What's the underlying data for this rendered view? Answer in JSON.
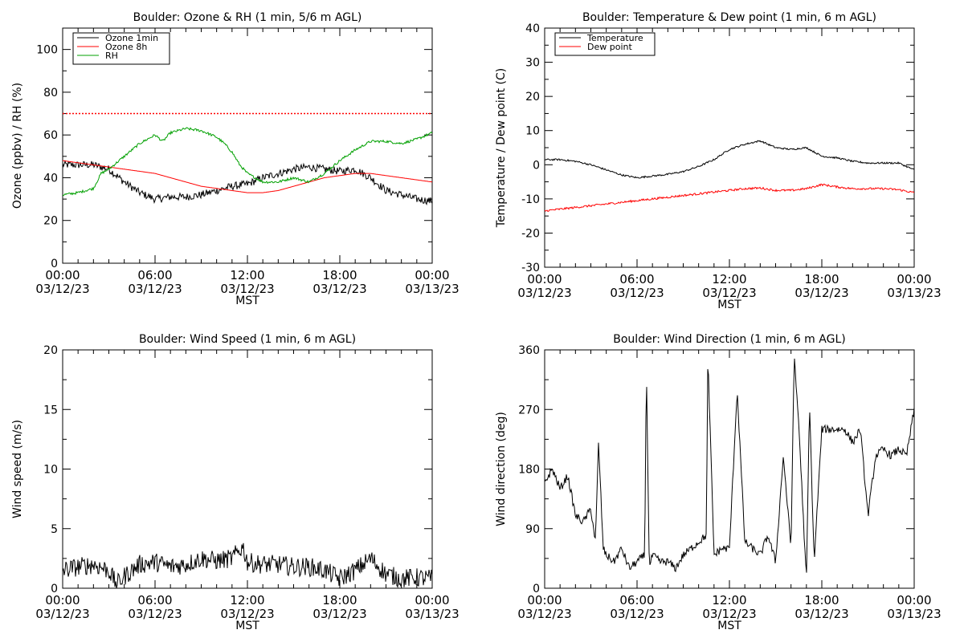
{
  "chart_data": [
    {
      "type": "line",
      "title": "Boulder: Ozone & RH (1 min, 5/6 m AGL)",
      "xlabel": "MST",
      "ylabel": "Ozone (ppbv) / RH (%)",
      "ylim": [
        0,
        110
      ],
      "yticks": [
        0,
        20,
        40,
        60,
        80,
        100
      ],
      "xticks": [
        {
          "top": "00:00",
          "bottom": "03/12/23"
        },
        {
          "top": "06:00",
          "bottom": "03/12/23"
        },
        {
          "top": "12:00",
          "bottom": "03/12/23"
        },
        {
          "top": "18:00",
          "bottom": "03/12/23"
        },
        {
          "top": "00:00",
          "bottom": "03/13/23"
        }
      ],
      "xlim_hours": [
        0,
        24
      ],
      "legend": "top-left",
      "reference_line": {
        "y": 70,
        "color": "#ff0000",
        "style": "dotted"
      },
      "series": [
        {
          "name": "Ozone 1min",
          "color": "#000000",
          "noise": 1.8,
          "x": [
            0,
            1,
            2,
            3,
            4,
            5,
            6,
            7,
            8,
            9,
            10,
            11,
            12,
            13,
            14,
            15,
            16,
            17,
            18,
            19,
            20,
            21,
            22,
            23,
            24
          ],
          "y": [
            46,
            46,
            46,
            44,
            38,
            33,
            30,
            31,
            31,
            32,
            34,
            36,
            37,
            40,
            42,
            44,
            45,
            44,
            43,
            44,
            40,
            34,
            32,
            30,
            29
          ]
        },
        {
          "name": "Ozone 8h",
          "color": "#ff0000",
          "noise": 0,
          "x": [
            0,
            1,
            2,
            3,
            4,
            5,
            6,
            7,
            8,
            9,
            10,
            11,
            12,
            13,
            14,
            15,
            16,
            17,
            18,
            19,
            20,
            21,
            22,
            23,
            24
          ],
          "y": [
            48,
            47,
            46,
            45,
            44,
            43,
            42,
            40,
            38,
            36,
            35,
            34,
            33,
            33,
            34,
            36,
            38,
            40,
            41,
            42,
            42,
            41,
            40,
            39,
            38
          ]
        },
        {
          "name": "RH",
          "color": "#00a000",
          "noise": 0.6,
          "x": [
            0,
            1,
            2,
            2.5,
            3,
            4,
            5,
            6,
            6.5,
            7,
            8,
            9,
            10,
            10.5,
            11,
            11.5,
            12,
            13,
            14,
            15,
            16,
            17,
            17.5,
            18,
            19,
            20,
            21,
            22,
            23,
            24
          ],
          "y": [
            32,
            33,
            35,
            42,
            44,
            50,
            56,
            60,
            57,
            61,
            63,
            62,
            59,
            56,
            52,
            46,
            42,
            38,
            38,
            40,
            38,
            42,
            45,
            48,
            53,
            57,
            57,
            56,
            58,
            61
          ]
        }
      ]
    },
    {
      "type": "line",
      "title": "Boulder: Temperature & Dew point (1 min, 6 m AGL)",
      "xlabel": "MST",
      "ylabel": "Temperature / Dew point (C)",
      "ylim": [
        -30,
        40
      ],
      "yticks": [
        -30,
        -20,
        -10,
        0,
        10,
        20,
        30,
        40
      ],
      "xticks": [
        {
          "top": "00:00",
          "bottom": "03/12/23"
        },
        {
          "top": "06:00",
          "bottom": "03/12/23"
        },
        {
          "top": "12:00",
          "bottom": "03/12/23"
        },
        {
          "top": "18:00",
          "bottom": "03/12/23"
        },
        {
          "top": "00:00",
          "bottom": "03/13/23"
        }
      ],
      "xlim_hours": [
        0,
        24
      ],
      "legend": "top-left",
      "series": [
        {
          "name": "Temperature",
          "color": "#000000",
          "noise": 0.25,
          "x": [
            0,
            1,
            2,
            3,
            4,
            5,
            6,
            7,
            8,
            9,
            10,
            11,
            12,
            13,
            14,
            15,
            16,
            17,
            18,
            19,
            20,
            21,
            22,
            23,
            24
          ],
          "y": [
            1.5,
            1.5,
            1,
            0,
            -1.5,
            -3,
            -3.8,
            -3.3,
            -2.8,
            -2,
            -0.5,
            1.5,
            4.5,
            6,
            7,
            5,
            4.5,
            5,
            2.5,
            2,
            1,
            0.5,
            0.5,
            0.5,
            -1.5
          ]
        },
        {
          "name": "Dew point",
          "color": "#ff0000",
          "noise": 0.3,
          "x": [
            0,
            1,
            2,
            3,
            4,
            5,
            6,
            7,
            8,
            9,
            10,
            11,
            12,
            13,
            14,
            15,
            16,
            17,
            18,
            19,
            20,
            21,
            22,
            23,
            24
          ],
          "y": [
            -13.5,
            -13,
            -12.5,
            -12,
            -11.5,
            -11,
            -10.5,
            -10,
            -9.5,
            -9,
            -8.5,
            -8,
            -7.5,
            -7,
            -6.8,
            -7.5,
            -7.5,
            -7,
            -5.8,
            -6.5,
            -7,
            -7,
            -7,
            -7.3,
            -8.2
          ]
        }
      ]
    },
    {
      "type": "line",
      "title": "Boulder: Wind Speed (1 min, 6 m AGL)",
      "xlabel": "MST",
      "ylabel": "Wind speed (m/s)",
      "ylim": [
        0,
        20
      ],
      "yticks": [
        0,
        5,
        10,
        15,
        20
      ],
      "xticks": [
        {
          "top": "00:00",
          "bottom": "03/12/23"
        },
        {
          "top": "06:00",
          "bottom": "03/12/23"
        },
        {
          "top": "12:00",
          "bottom": "03/12/23"
        },
        {
          "top": "18:00",
          "bottom": "03/12/23"
        },
        {
          "top": "00:00",
          "bottom": "03/13/23"
        }
      ],
      "xlim_hours": [
        0,
        24
      ],
      "series": [
        {
          "color": "#000000",
          "noise": 0.8,
          "x": [
            0,
            1,
            2,
            3,
            3.5,
            4,
            5,
            6,
            7,
            8,
            9,
            10,
            11,
            11.7,
            12,
            13,
            14,
            15,
            16,
            17,
            18,
            19,
            20,
            21,
            22,
            23,
            24
          ],
          "y": [
            1.5,
            1.8,
            2,
            1.5,
            0.3,
            1,
            2,
            2.2,
            1.8,
            2,
            2.5,
            2.3,
            2.5,
            3.5,
            2.2,
            2,
            2,
            1.8,
            1.8,
            1.5,
            0.8,
            1.5,
            2.5,
            1.2,
            0.8,
            0.9,
            0.8
          ]
        }
      ]
    },
    {
      "type": "line",
      "title": "Boulder: Wind Direction (1 min, 6 m AGL)",
      "xlabel": "MST",
      "ylabel": "Wind direction (deg)",
      "ylim": [
        0,
        360
      ],
      "yticks": [
        0,
        90,
        180,
        270,
        360
      ],
      "xticks": [
        {
          "top": "00:00",
          "bottom": "03/12/23"
        },
        {
          "top": "06:00",
          "bottom": "03/12/23"
        },
        {
          "top": "12:00",
          "bottom": "03/12/23"
        },
        {
          "top": "18:00",
          "bottom": "03/12/23"
        },
        {
          "top": "00:00",
          "bottom": "03/13/23"
        }
      ],
      "xlim_hours": [
        0,
        24
      ],
      "series": [
        {
          "color": "#000000",
          "noise": 6,
          "x": [
            0,
            0.5,
            1,
            1.5,
            2,
            2.5,
            3,
            3.3,
            3.5,
            3.8,
            4,
            4.5,
            5,
            5.5,
            6,
            6.5,
            6.6,
            6.8,
            7,
            7.5,
            8,
            8.5,
            9,
            9.5,
            10,
            10.5,
            10.6,
            11,
            11.5,
            12,
            12.5,
            13,
            13.5,
            14,
            14.5,
            15,
            15.5,
            16,
            16.2,
            16.5,
            17,
            17.2,
            17.5,
            18,
            18.5,
            19,
            19.5,
            20,
            20.5,
            21,
            21.5,
            22,
            22.5,
            23,
            23.5,
            24
          ],
          "y": [
            160,
            180,
            150,
            170,
            110,
            100,
            120,
            70,
            220,
            60,
            50,
            40,
            60,
            30,
            40,
            50,
            340,
            30,
            50,
            40,
            40,
            30,
            50,
            60,
            70,
            80,
            350,
            50,
            60,
            60,
            300,
            70,
            60,
            50,
            80,
            40,
            200,
            60,
            350,
            250,
            10,
            280,
            40,
            240,
            240,
            240,
            240,
            220,
            240,
            110,
            200,
            210,
            200,
            210,
            200,
            270
          ]
        }
      ]
    }
  ]
}
